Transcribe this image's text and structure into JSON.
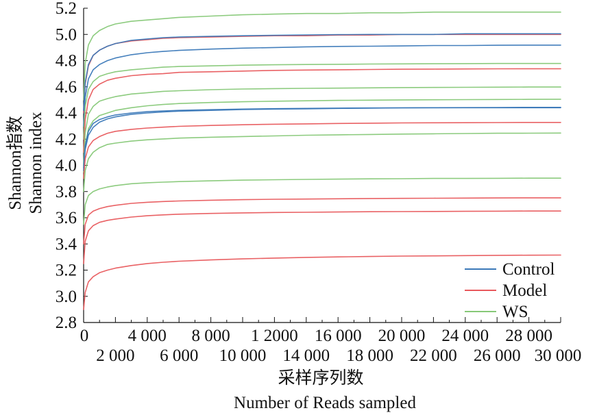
{
  "chart_data": {
    "type": "line",
    "title": "",
    "xlabel_cn": "采样序列数",
    "xlabel_en": "Number of Reads sampled",
    "ylabel_cn": "Shannon指数",
    "ylabel_en": "Shannon index",
    "xlim": [
      0,
      30000
    ],
    "ylim": [
      2.8,
      5.2
    ],
    "grid": false,
    "legend_position": "bottom-right",
    "y_ticks": [
      {
        "value": 2.8,
        "label": "2.8"
      },
      {
        "value": 3.0,
        "label": "3.0"
      },
      {
        "value": 3.2,
        "label": "3.2"
      },
      {
        "value": 3.4,
        "label": "3.4"
      },
      {
        "value": 3.6,
        "label": "3.6"
      },
      {
        "value": 3.8,
        "label": "3.8"
      },
      {
        "value": 4.0,
        "label": "4.0"
      },
      {
        "value": 4.2,
        "label": "4.2"
      },
      {
        "value": 4.4,
        "label": "4.4"
      },
      {
        "value": 4.6,
        "label": "4.6"
      },
      {
        "value": 4.8,
        "label": "4.8"
      },
      {
        "value": 5.0,
        "label": "5.0"
      },
      {
        "value": 5.2,
        "label": "5.2"
      }
    ],
    "x_ticks_upper": [
      {
        "value": 0,
        "label": "0"
      },
      {
        "value": 4000,
        "label": "4 000"
      },
      {
        "value": 8000,
        "label": "8 000"
      },
      {
        "value": 12000,
        "label": "1 2000"
      },
      {
        "value": 16000,
        "label": "16 000"
      },
      {
        "value": 20000,
        "label": "20 000"
      },
      {
        "value": 24000,
        "label": "24 000"
      },
      {
        "value": 28000,
        "label": "28 000"
      }
    ],
    "x_ticks_lower": [
      {
        "value": 2000,
        "label": "2 000"
      },
      {
        "value": 6000,
        "label": "6 000"
      },
      {
        "value": 10000,
        "label": "10 000"
      },
      {
        "value": 14000,
        "label": "14 000"
      },
      {
        "value": 18000,
        "label": "18 000"
      },
      {
        "value": 22000,
        "label": "22 000"
      },
      {
        "value": 26000,
        "label": "26 000"
      },
      {
        "value": 30000,
        "label": "30 000"
      }
    ],
    "x_minor_ticks": [
      1000,
      3000,
      5000,
      7000,
      9000,
      11000,
      13000,
      15000,
      17000,
      19000,
      21000,
      23000,
      25000,
      27000,
      29000
    ],
    "group_colors": {
      "Control": "#3a78b8",
      "Model": "#e8585c",
      "WS": "#86c877"
    },
    "legend": [
      {
        "group": "Control",
        "label": "Control"
      },
      {
        "group": "Model",
        "label": "Model"
      },
      {
        "group": "WS",
        "label": "WS"
      }
    ],
    "x": [
      0,
      100,
      300,
      600,
      1000,
      1500,
      2000,
      3000,
      4000,
      5000,
      6000,
      8000,
      10000,
      12000,
      14000,
      16000,
      18000,
      20000,
      22000,
      24000,
      26000,
      28000,
      30000
    ],
    "series": [
      {
        "group": "WS",
        "values": [
          4.5,
          4.78,
          4.92,
          4.99,
          5.03,
          5.06,
          5.08,
          5.1,
          5.11,
          5.12,
          5.13,
          5.14,
          5.15,
          5.155,
          5.16,
          5.16,
          5.165,
          5.165,
          5.17,
          5.17,
          5.17,
          5.17,
          5.17
        ]
      },
      {
        "group": "Model",
        "values": [
          4.4,
          4.62,
          4.76,
          4.84,
          4.88,
          4.91,
          4.93,
          4.95,
          4.96,
          4.97,
          4.975,
          4.98,
          4.985,
          4.99,
          4.99,
          4.995,
          4.995,
          5.0,
          5.0,
          5.0,
          5.0,
          5.0,
          5.0
        ]
      },
      {
        "group": "Control",
        "values": [
          4.42,
          4.63,
          4.77,
          4.84,
          4.88,
          4.91,
          4.93,
          4.955,
          4.965,
          4.975,
          4.98,
          4.985,
          4.99,
          4.993,
          4.996,
          4.998,
          5.0,
          5.0,
          5.0,
          5.005,
          5.005,
          5.005,
          5.005
        ]
      },
      {
        "group": "Control",
        "values": [
          4.3,
          4.52,
          4.66,
          4.73,
          4.77,
          4.8,
          4.82,
          4.845,
          4.86,
          4.87,
          4.878,
          4.888,
          4.895,
          4.9,
          4.905,
          4.908,
          4.91,
          4.912,
          4.915,
          4.915,
          4.917,
          4.918,
          4.918
        ]
      },
      {
        "group": "WS",
        "values": [
          4.2,
          4.45,
          4.58,
          4.64,
          4.68,
          4.7,
          4.715,
          4.73,
          4.74,
          4.75,
          4.755,
          4.76,
          4.765,
          4.768,
          4.77,
          4.772,
          4.774,
          4.775,
          4.776,
          4.777,
          4.778,
          4.778,
          4.778
        ]
      },
      {
        "group": "Model",
        "values": [
          4.1,
          4.35,
          4.5,
          4.58,
          4.62,
          4.65,
          4.665,
          4.685,
          4.695,
          4.7,
          4.71,
          4.715,
          4.72,
          4.725,
          4.728,
          4.73,
          4.732,
          4.734,
          4.735,
          4.736,
          4.737,
          4.738,
          4.738
        ]
      },
      {
        "group": "WS",
        "values": [
          4.0,
          4.25,
          4.39,
          4.45,
          4.49,
          4.51,
          4.525,
          4.545,
          4.555,
          4.565,
          4.57,
          4.578,
          4.583,
          4.586,
          4.588,
          4.59,
          4.592,
          4.594,
          4.595,
          4.596,
          4.597,
          4.598,
          4.598
        ]
      },
      {
        "group": "WS",
        "values": [
          3.95,
          4.15,
          4.28,
          4.34,
          4.38,
          4.4,
          4.42,
          4.44,
          4.455,
          4.465,
          4.472,
          4.48,
          4.486,
          4.49,
          4.493,
          4.496,
          4.498,
          4.5,
          4.501,
          4.502,
          4.503,
          4.504,
          4.505
        ]
      },
      {
        "group": "Control",
        "values": [
          3.98,
          4.15,
          4.26,
          4.32,
          4.35,
          4.37,
          4.385,
          4.4,
          4.41,
          4.415,
          4.42,
          4.425,
          4.43,
          4.433,
          4.435,
          4.437,
          4.438,
          4.439,
          4.44,
          4.44,
          4.44,
          4.44,
          4.44
        ]
      },
      {
        "group": "Control",
        "values": [
          3.96,
          4.12,
          4.23,
          4.29,
          4.33,
          4.355,
          4.37,
          4.39,
          4.4,
          4.408,
          4.414,
          4.42,
          4.426,
          4.43,
          4.432,
          4.435,
          4.437,
          4.439,
          4.44,
          4.441,
          4.442,
          4.443,
          4.443
        ]
      },
      {
        "group": "Model",
        "values": [
          3.9,
          4.05,
          4.14,
          4.19,
          4.22,
          4.245,
          4.26,
          4.275,
          4.285,
          4.292,
          4.298,
          4.305,
          4.31,
          4.314,
          4.317,
          4.32,
          4.322,
          4.324,
          4.325,
          4.326,
          4.327,
          4.328,
          4.328
        ]
      },
      {
        "group": "WS",
        "values": [
          3.8,
          3.96,
          4.05,
          4.1,
          4.135,
          4.16,
          4.17,
          4.185,
          4.195,
          4.202,
          4.208,
          4.215,
          4.22,
          4.225,
          4.23,
          4.233,
          4.236,
          4.239,
          4.241,
          4.243,
          4.245,
          4.246,
          4.247
        ]
      },
      {
        "group": "WS",
        "values": [
          3.55,
          3.7,
          3.77,
          3.8,
          3.82,
          3.835,
          3.845,
          3.86,
          3.867,
          3.872,
          3.876,
          3.882,
          3.887,
          3.89,
          3.893,
          3.895,
          3.897,
          3.898,
          3.9,
          3.9,
          3.901,
          3.902,
          3.902
        ]
      },
      {
        "group": "Model",
        "values": [
          3.4,
          3.55,
          3.62,
          3.65,
          3.67,
          3.685,
          3.695,
          3.71,
          3.718,
          3.724,
          3.728,
          3.734,
          3.738,
          3.741,
          3.743,
          3.745,
          3.747,
          3.748,
          3.749,
          3.75,
          3.751,
          3.752,
          3.752
        ]
      },
      {
        "group": "Model",
        "values": [
          3.25,
          3.42,
          3.5,
          3.54,
          3.565,
          3.58,
          3.59,
          3.605,
          3.615,
          3.622,
          3.627,
          3.633,
          3.637,
          3.64,
          3.642,
          3.644,
          3.646,
          3.647,
          3.648,
          3.649,
          3.65,
          3.651,
          3.651
        ]
      },
      {
        "group": "Model",
        "values": [
          2.9,
          3.03,
          3.11,
          3.15,
          3.18,
          3.2,
          3.215,
          3.235,
          3.25,
          3.26,
          3.268,
          3.278,
          3.286,
          3.292,
          3.297,
          3.301,
          3.304,
          3.307,
          3.309,
          3.311,
          3.313,
          3.314,
          3.315
        ]
      }
    ]
  }
}
